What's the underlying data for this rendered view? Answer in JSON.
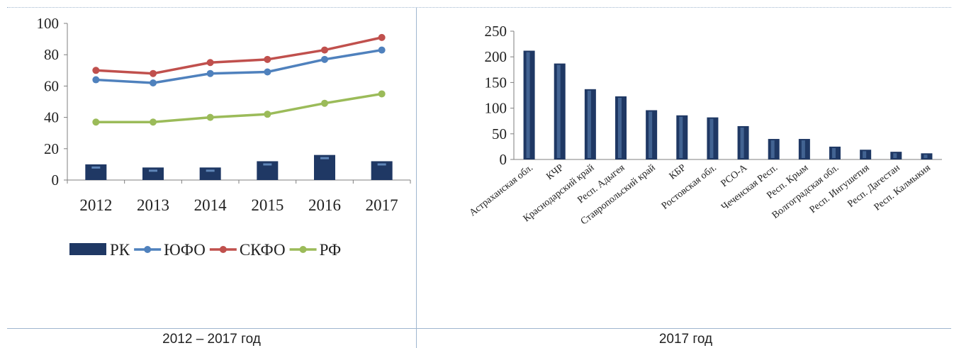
{
  "captions": {
    "left": "2012 – 2017 год",
    "right": "2017 год"
  },
  "colors": {
    "bar": "#1f3864",
    "bar_highlight": "#5f86b8",
    "series_ufo": "#4f81bd",
    "series_skfo": "#c0504d",
    "series_rf": "#9bbb59",
    "axis": "#7f7f7f"
  },
  "chart_data": [
    {
      "type": "bar+line",
      "title": "",
      "xlabel": "",
      "ylabel": "",
      "categories": [
        "2012",
        "2013",
        "2014",
        "2015",
        "2016",
        "2017"
      ],
      "ylim": [
        0,
        100
      ],
      "yticks": [
        0,
        20,
        40,
        60,
        80,
        100
      ],
      "grid": false,
      "legend": "bottom",
      "series": [
        {
          "name": "РК",
          "kind": "bar",
          "values": [
            10,
            8,
            8,
            12,
            16,
            12
          ]
        },
        {
          "name": "ЮФО",
          "kind": "line",
          "values": [
            64,
            62,
            68,
            69,
            77,
            83
          ]
        },
        {
          "name": "СКФО",
          "kind": "line",
          "values": [
            70,
            68,
            75,
            77,
            83,
            91
          ]
        },
        {
          "name": "РФ",
          "kind": "line",
          "values": [
            37,
            37,
            40,
            42,
            49,
            55
          ]
        }
      ]
    },
    {
      "type": "bar",
      "title": "",
      "xlabel": "",
      "ylabel": "",
      "categories": [
        "Астраханская обл.",
        "КЧР",
        "Краснодарский край",
        "Респ. Адыгея",
        "Ставропольский край",
        "КБР",
        "Ростовская обл.",
        "РСО-А",
        "Чеченская Респ.",
        "Респ. Крым",
        "Волгоградская обл.",
        "Респ. Ингушетия",
        "Респ. Дагестан",
        "Респ. Калмыкия"
      ],
      "values": [
        212,
        187,
        137,
        123,
        96,
        86,
        82,
        65,
        40,
        40,
        25,
        19,
        15,
        12
      ],
      "ylim": [
        0,
        250
      ],
      "yticks": [
        0,
        50,
        100,
        150,
        200,
        250
      ],
      "grid": false,
      "legend": "none"
    }
  ]
}
